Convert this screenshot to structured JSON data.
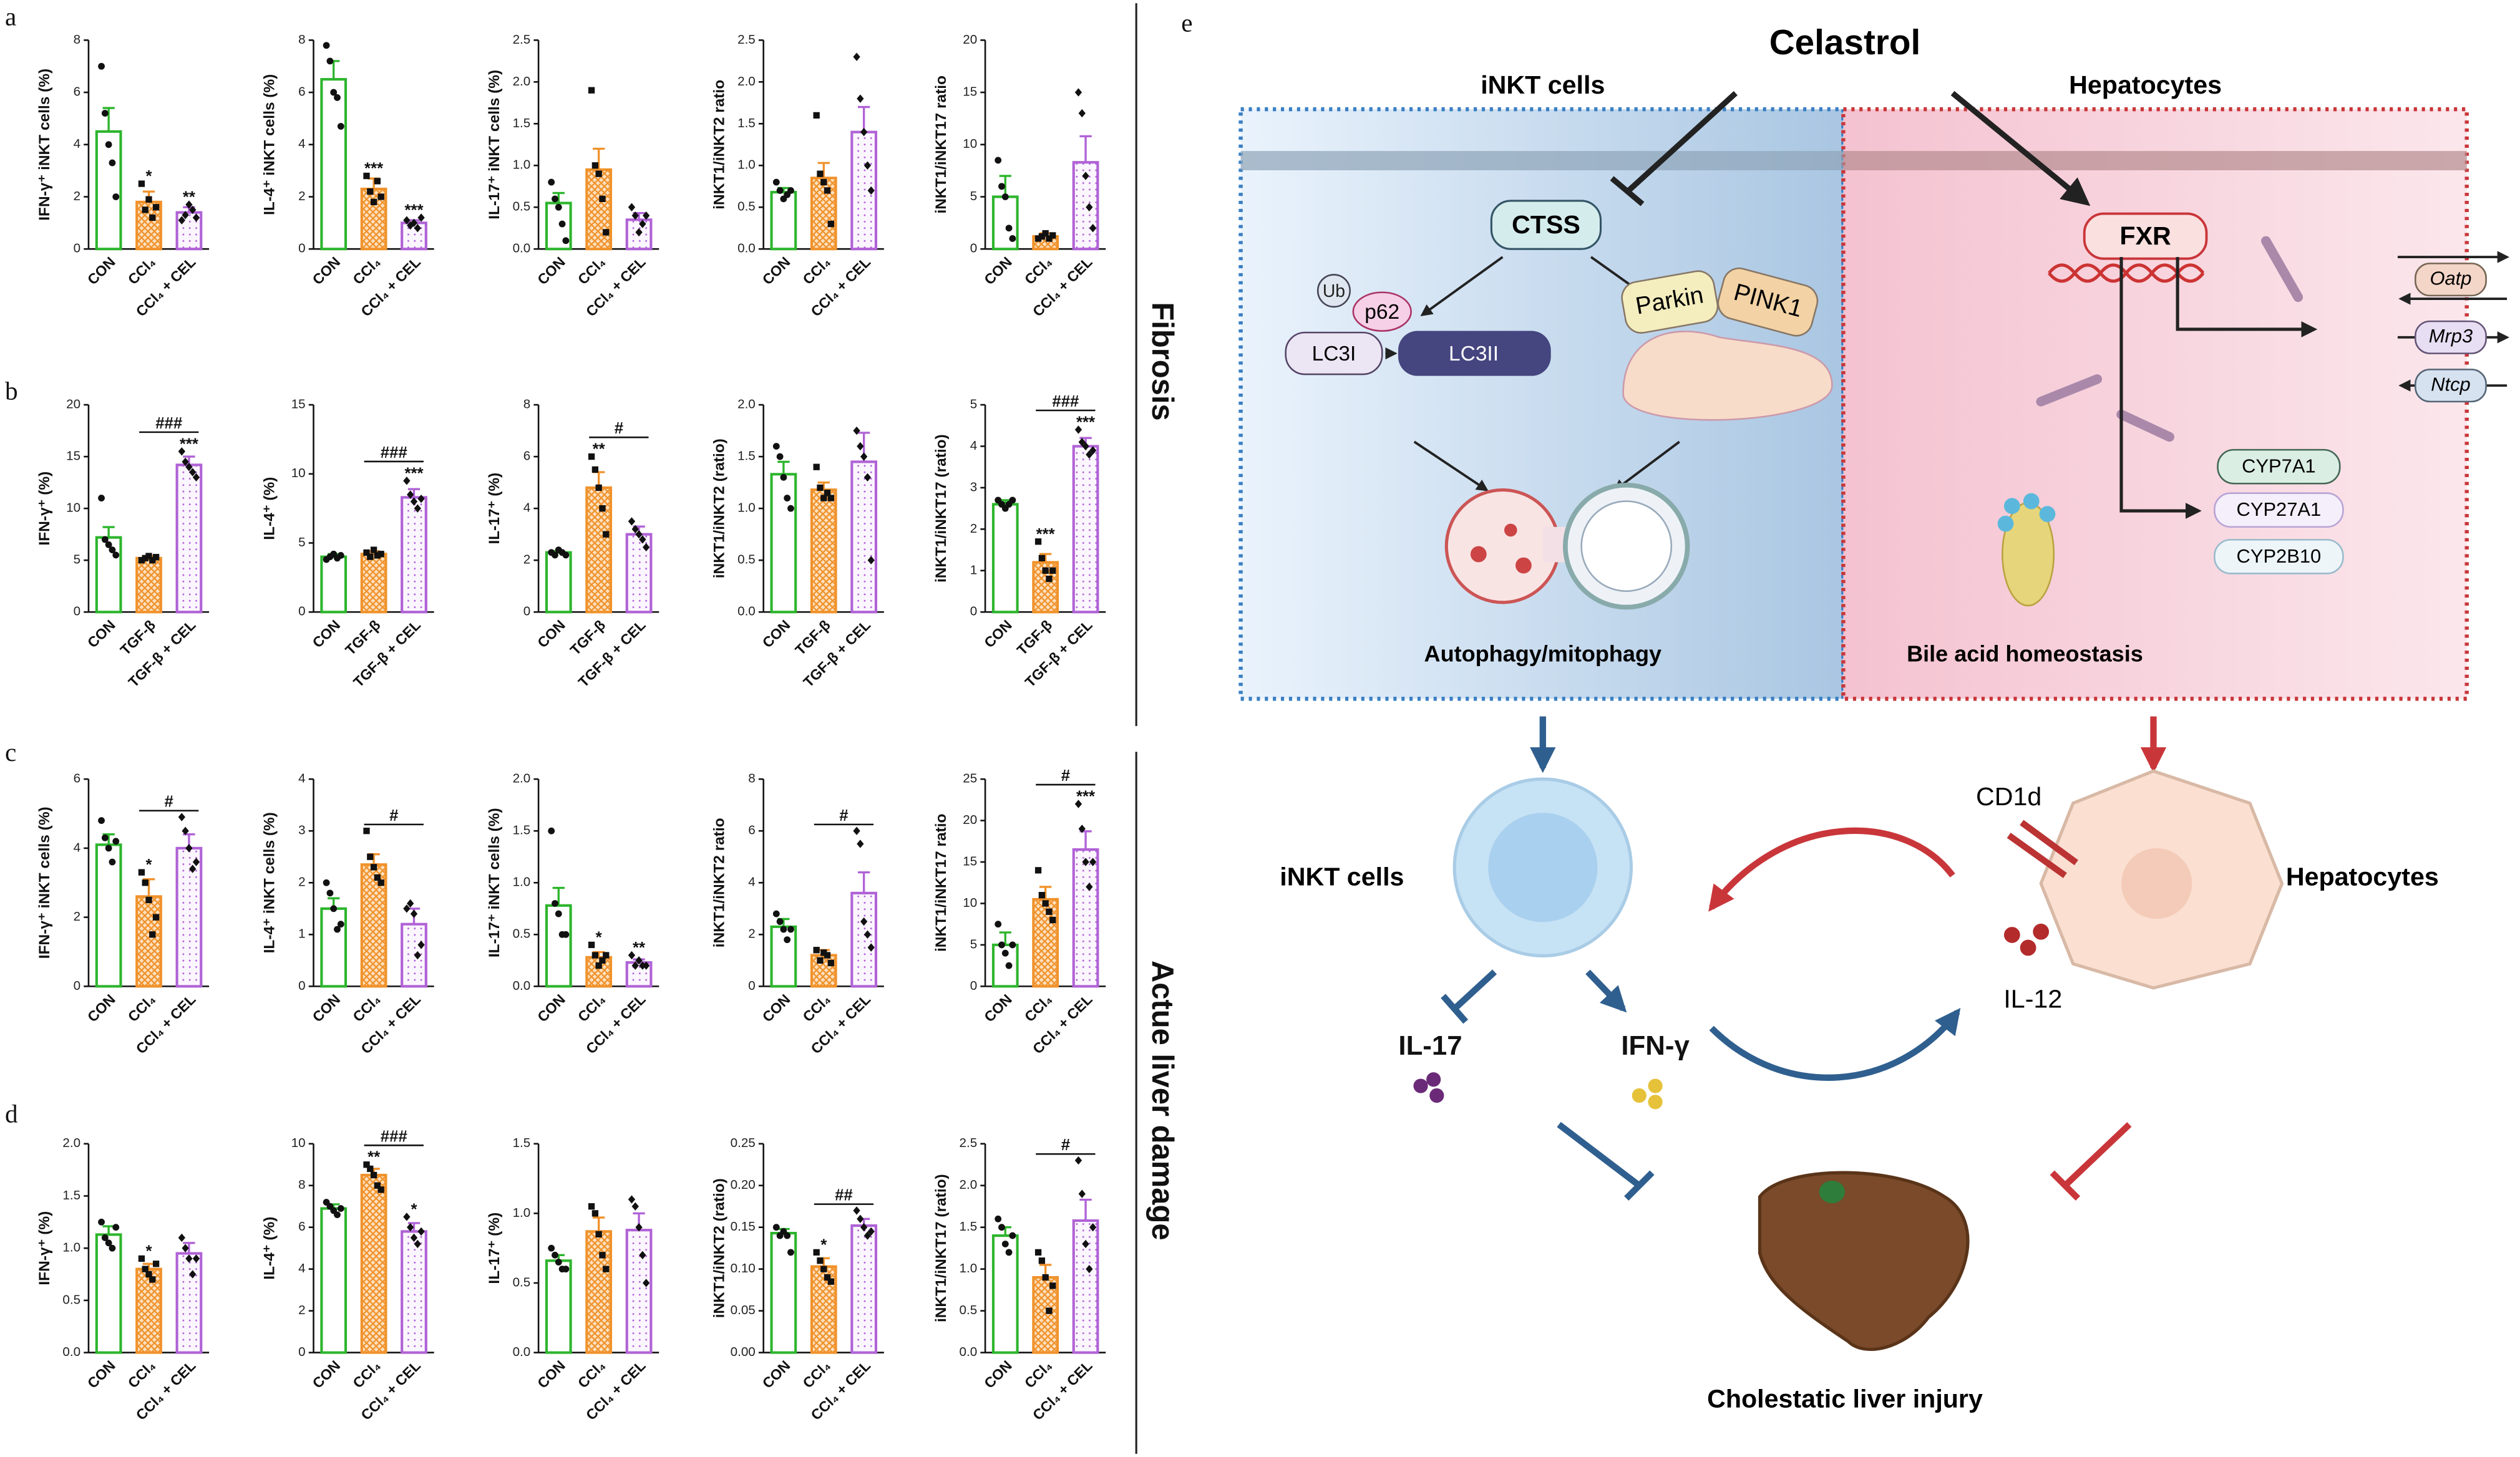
{
  "panels": [
    "a",
    "b",
    "c",
    "d"
  ],
  "side_labels": [
    "Fibrosis",
    "Actue liver damage"
  ],
  "style": {
    "colors": [
      "#2db52d",
      "#f0922b",
      "#b062d6"
    ],
    "patterns": [
      "none",
      "crosshatch",
      "dots"
    ]
  },
  "chart_data": [
    {
      "type": "bar",
      "ylabel": "IFN-γ⁺ iNKT cells (%)",
      "categories": [
        "CON",
        "CCl₄",
        "CCl₄ + CEL"
      ],
      "values": [
        4.5,
        1.8,
        1.4
      ],
      "errors": [
        0.9,
        0.4,
        0.2
      ],
      "points": [
        [
          7,
          5.2,
          4.0,
          3.3,
          2.0
        ],
        [
          2.5,
          1.5,
          1.9,
          1.2,
          1.6
        ],
        [
          1.1,
          1.3,
          1.7,
          1.5,
          1.2
        ]
      ],
      "stars": [
        null,
        "*",
        "**"
      ],
      "ylim": [
        0,
        8
      ],
      "yticks": [
        0,
        2,
        4,
        6,
        8
      ]
    },
    {
      "type": "bar",
      "ylabel": "IL-4⁺ iNKT cells (%)",
      "categories": [
        "CON",
        "CCl₄",
        "CCl₄ + CEL"
      ],
      "values": [
        6.5,
        2.3,
        1.0
      ],
      "errors": [
        0.7,
        0.4,
        0.1
      ],
      "points": [
        [
          7.8,
          7.2,
          6.0,
          5.8,
          4.7
        ],
        [
          2.8,
          2.2,
          1.8,
          2.6,
          2.0
        ],
        [
          1.1,
          0.9,
          1.0,
          0.8,
          1.2
        ]
      ],
      "stars": [
        null,
        "***",
        "***"
      ],
      "ylim": [
        0,
        8
      ],
      "yticks": [
        0,
        2,
        4,
        6,
        8
      ]
    },
    {
      "type": "bar",
      "ylabel": "IL-17⁺ iNKT cells (%)",
      "categories": [
        "CON",
        "CCl₄",
        "CCl₄ + CEL"
      ],
      "values": [
        0.55,
        0.95,
        0.35
      ],
      "errors": [
        0.12,
        0.25,
        0.08
      ],
      "points": [
        [
          0.8,
          0.6,
          0.5,
          0.3,
          0.1
        ],
        [
          1.9,
          1.0,
          0.9,
          0.6,
          0.2
        ],
        [
          0.5,
          0.4,
          0.2,
          0.3,
          0.4
        ]
      ],
      "ylim": [
        0,
        2.5
      ],
      "yticks": [
        {
          "value": 0,
          "label": "0.0"
        },
        0.5,
        {
          "value": 1,
          "label": "1.0"
        },
        1.5,
        {
          "value": 2,
          "label": "2.0"
        },
        2.5
      ]
    },
    {
      "type": "bar",
      "ylabel": "iNKT1/iNKT2 ratio",
      "categories": [
        "CON",
        "CCl₄",
        "CCl₄ + CEL"
      ],
      "values": [
        0.68,
        0.85,
        1.4
      ],
      "errors": [
        0.05,
        0.18,
        0.3
      ],
      "points": [
        [
          0.8,
          0.7,
          0.6,
          0.65,
          0.7
        ],
        [
          1.6,
          0.9,
          0.8,
          0.7,
          0.3
        ],
        [
          2.3,
          1.8,
          1.4,
          1.0,
          0.7
        ]
      ],
      "ylim": [
        0,
        2.5
      ],
      "yticks": [
        {
          "value": 0,
          "label": "0.0"
        },
        0.5,
        {
          "value": 1,
          "label": "1.0"
        },
        1.5,
        {
          "value": 2,
          "label": "2.0"
        },
        2.5
      ]
    },
    {
      "type": "bar",
      "ylabel": "iNKT1/iNKT17 ratio",
      "categories": [
        "CON",
        "CCl₄",
        "CCl₄ + CEL"
      ],
      "values": [
        5,
        1.2,
        8.3
      ],
      "errors": [
        2,
        0.3,
        2.5
      ],
      "points": [
        [
          8.5,
          6,
          5,
          2,
          1
        ],
        [
          1,
          1.2,
          1.5,
          1.0,
          1.3
        ],
        [
          15,
          13,
          7,
          4,
          2
        ]
      ],
      "ylim": [
        0,
        20
      ],
      "yticks": [
        0,
        5,
        10,
        15,
        20
      ]
    },
    {
      "type": "bar",
      "ylabel": "IFN-γ⁺ (%)",
      "categories": [
        "CON",
        "TGF-β",
        "TGF-β + CEL"
      ],
      "values": [
        7.2,
        5.2,
        14.2
      ],
      "errors": [
        1.0,
        0.2,
        0.8
      ],
      "points": [
        [
          11,
          7,
          6.5,
          6,
          5.5
        ],
        [
          5,
          5.2,
          5.4,
          5.0,
          5.3
        ],
        [
          15.5,
          14.5,
          14,
          13.5,
          13
        ]
      ],
      "stars": [
        null,
        null,
        "***"
      ],
      "compare": {
        "from": 1,
        "to": 2,
        "label": "###"
      },
      "ylim": [
        0,
        20
      ],
      "yticks": [
        0,
        5,
        10,
        15,
        20
      ]
    },
    {
      "type": "bar",
      "ylabel": "IL-4⁺ (%)",
      "categories": [
        "CON",
        "TGF-β",
        "TGF-β + CEL"
      ],
      "values": [
        4.0,
        4.2,
        8.3
      ],
      "errors": [
        0.2,
        0.2,
        0.6
      ],
      "points": [
        [
          3.8,
          4.0,
          4.2,
          3.9,
          4.1
        ],
        [
          4.3,
          4.0,
          4.5,
          4.1,
          4.2
        ],
        [
          9.5,
          8.5,
          8.0,
          7.5,
          8.2
        ]
      ],
      "stars": [
        null,
        null,
        "***"
      ],
      "compare": {
        "from": 1,
        "to": 2,
        "label": "###"
      },
      "ylim": [
        0,
        15
      ],
      "yticks": [
        0,
        5,
        10,
        15
      ]
    },
    {
      "type": "bar",
      "ylabel": "IL-17⁺ (%)",
      "categories": [
        "CON",
        "TGF-β",
        "TGF-β + CEL"
      ],
      "values": [
        2.3,
        4.8,
        3.0
      ],
      "errors": [
        0.05,
        0.6,
        0.3
      ],
      "points": [
        [
          2.3,
          2.2,
          2.4,
          2.3,
          2.2
        ],
        [
          6,
          5.5,
          4.8,
          4,
          3
        ],
        [
          3.5,
          3.2,
          3,
          2.8,
          2.5
        ]
      ],
      "stars": [
        null,
        "**",
        null
      ],
      "compare": {
        "from": 1,
        "to": 2,
        "label": "#"
      },
      "ylim": [
        0,
        8
      ],
      "yticks": [
        0,
        2,
        4,
        6,
        8
      ]
    },
    {
      "type": "bar",
      "ylabel": "iNKT1/iNKT2 (ratio)",
      "categories": [
        "CON",
        "TGF-β",
        "TGF-β + CEL"
      ],
      "values": [
        1.33,
        1.18,
        1.45
      ],
      "errors": [
        0.12,
        0.07,
        0.28
      ],
      "points": [
        [
          1.6,
          1.5,
          1.3,
          1.1,
          1.0
        ],
        [
          1.4,
          1.2,
          1.1,
          1.15,
          1.1
        ],
        [
          1.75,
          1.6,
          1.5,
          1.3,
          0.5
        ]
      ],
      "ylim": [
        0,
        2
      ],
      "yticks": [
        {
          "value": 0,
          "label": "0.0"
        },
        0.5,
        {
          "value": 1,
          "label": "1.0"
        },
        1.5,
        {
          "value": 2,
          "label": "2.0"
        }
      ]
    },
    {
      "type": "bar",
      "ylabel": "iNKT1/iNKT17 (ratio)",
      "categories": [
        "CON",
        "TGF-β",
        "TGF-β + CEL"
      ],
      "values": [
        2.6,
        1.2,
        4.0
      ],
      "errors": [
        0.1,
        0.2,
        0.2
      ],
      "points": [
        [
          2.7,
          2.6,
          2.5,
          2.6,
          2.7
        ],
        [
          1.7,
          1.3,
          1.0,
          0.8,
          1.0
        ],
        [
          4.4,
          4.1,
          4.0,
          3.8,
          3.9
        ]
      ],
      "stars": [
        null,
        "***",
        "***"
      ],
      "compare": {
        "from": 1,
        "to": 2,
        "label": "###"
      },
      "ylim": [
        0,
        5
      ],
      "yticks": [
        0,
        1,
        2,
        3,
        4,
        5
      ]
    },
    {
      "type": "bar",
      "ylabel": "IFN-γ⁺ iNKT cells (%)",
      "categories": [
        "CON",
        "CCl₄",
        "CCl₄ + CEL"
      ],
      "values": [
        4.1,
        2.6,
        4.0
      ],
      "errors": [
        0.3,
        0.5,
        0.4
      ],
      "points": [
        [
          4.8,
          4.3,
          4.0,
          3.6,
          4.2
        ],
        [
          3.3,
          3.0,
          2.5,
          1.5,
          2.0
        ],
        [
          4.9,
          4.5,
          4.0,
          3.4,
          3.6
        ]
      ],
      "stars": [
        null,
        "*",
        null
      ],
      "compare": {
        "from": 1,
        "to": 2,
        "label": "#"
      },
      "ylim": [
        0,
        6
      ],
      "yticks": [
        0,
        2,
        4,
        6
      ]
    },
    {
      "type": "bar",
      "ylabel": "IL-4⁺ iNKT cells (%)",
      "categories": [
        "CON",
        "CCl₄",
        "CCl₄ + CEL"
      ],
      "values": [
        1.5,
        2.35,
        1.2
      ],
      "errors": [
        0.2,
        0.2,
        0.3
      ],
      "points": [
        [
          2.0,
          1.8,
          1.5,
          1.1,
          1.2
        ],
        [
          3.0,
          2.5,
          2.3,
          2.1,
          2.0
        ],
        [
          1.5,
          1.6,
          1.4,
          0.6,
          0.8
        ]
      ],
      "compare": {
        "from": 1,
        "to": 2,
        "label": "#"
      },
      "ylim": [
        0,
        4
      ],
      "yticks": [
        0,
        1,
        2,
        3,
        4
      ]
    },
    {
      "type": "bar",
      "ylabel": "IL-17⁺ iNKT cells (%)",
      "categories": [
        "CON",
        "CCl₄",
        "CCl₄ + CEL"
      ],
      "values": [
        0.78,
        0.28,
        0.23
      ],
      "errors": [
        0.17,
        0.05,
        0.03
      ],
      "points": [
        [
          1.5,
          0.8,
          0.7,
          0.5,
          0.5
        ],
        [
          0.4,
          0.3,
          0.2,
          0.25,
          0.3
        ],
        [
          0.3,
          0.2,
          0.25,
          0.2,
          0.2
        ]
      ],
      "stars": [
        null,
        "*",
        "**"
      ],
      "ylim": [
        0,
        2
      ],
      "yticks": [
        {
          "value": 0,
          "label": "0.0"
        },
        0.5,
        {
          "value": 1,
          "label": "1.0"
        },
        1.5,
        {
          "value": 2,
          "label": "2.0"
        }
      ]
    },
    {
      "type": "bar",
      "ylabel": "iNKT1/iNKT2 ratio",
      "categories": [
        "CON",
        "CCl₄",
        "CCl₄ + CEL"
      ],
      "values": [
        2.3,
        1.2,
        3.6
      ],
      "errors": [
        0.3,
        0.2,
        0.8
      ],
      "points": [
        [
          2.8,
          2.5,
          2.2,
          1.8,
          2.2
        ],
        [
          1.4,
          1.0,
          1.3,
          1.2,
          0.9
        ],
        [
          6.0,
          5.5,
          2.5,
          2.0,
          1.5
        ]
      ],
      "compare": {
        "from": 1,
        "to": 2,
        "label": "#"
      },
      "ylim": [
        0,
        8
      ],
      "yticks": [
        0,
        2,
        4,
        6,
        8
      ]
    },
    {
      "type": "bar",
      "ylabel": "iNKT1/iNKT17 ratio",
      "categories": [
        "CON",
        "CCl₄",
        "CCl₄ + CEL"
      ],
      "values": [
        5,
        10.5,
        16.5
      ],
      "errors": [
        1.5,
        1.5,
        2.2
      ],
      "points": [
        [
          7.5,
          5,
          4,
          2.5,
          5
        ],
        [
          14,
          11,
          10,
          9,
          8
        ],
        [
          22,
          19,
          15,
          12,
          15
        ]
      ],
      "stars": [
        null,
        null,
        "***"
      ],
      "compare": {
        "from": 1,
        "to": 2,
        "label": "#"
      },
      "ylim": [
        0,
        25
      ],
      "yticks": [
        0,
        5,
        10,
        15,
        20,
        25
      ]
    },
    {
      "type": "bar",
      "ylabel": "IFN-γ⁺ (%)",
      "categories": [
        "CON",
        "CCl₄",
        "CCl₄ + CEL"
      ],
      "values": [
        1.13,
        0.8,
        0.95
      ],
      "errors": [
        0.08,
        0.05,
        0.1
      ],
      "points": [
        [
          1.25,
          1.1,
          1.05,
          1.0,
          1.2
        ],
        [
          0.9,
          0.8,
          0.75,
          0.7,
          0.85
        ],
        [
          1.1,
          1.0,
          0.9,
          0.75,
          0.9
        ]
      ],
      "stars": [
        null,
        "*",
        null
      ],
      "ylim": [
        0,
        2
      ],
      "yticks": [
        {
          "value": 0,
          "label": "0.0"
        },
        0.5,
        {
          "value": 1,
          "label": "1.0"
        },
        1.5,
        {
          "value": 2,
          "label": "2.0"
        }
      ]
    },
    {
      "type": "bar",
      "ylabel": "IL-4⁺ (%)",
      "categories": [
        "CON",
        "CCl₄",
        "CCl₄ + CEL"
      ],
      "values": [
        6.9,
        8.5,
        5.8
      ],
      "errors": [
        0.2,
        0.3,
        0.4
      ],
      "points": [
        [
          7.2,
          7.0,
          6.8,
          6.6,
          6.9
        ],
        [
          9.0,
          8.8,
          8.5,
          8.0,
          7.8
        ],
        [
          6.5,
          6.0,
          5.5,
          5.2,
          5.8
        ]
      ],
      "stars": [
        null,
        "**",
        "*"
      ],
      "compare": {
        "from": 1,
        "to": 2,
        "label": "###"
      },
      "ylim": [
        0,
        10
      ],
      "yticks": [
        0,
        2,
        4,
        6,
        8,
        10
      ]
    },
    {
      "type": "bar",
      "ylabel": "IL-17⁺ (%)",
      "categories": [
        "CON",
        "CCl₄",
        "CCl₄ + CEL"
      ],
      "values": [
        0.66,
        0.87,
        0.88
      ],
      "errors": [
        0.04,
        0.1,
        0.12
      ],
      "points": [
        [
          0.75,
          0.7,
          0.65,
          0.6,
          0.6
        ],
        [
          1.05,
          1.0,
          0.85,
          0.7,
          0.6
        ],
        [
          1.1,
          1.05,
          0.9,
          0.7,
          0.5
        ]
      ],
      "ylim": [
        0,
        1.5
      ],
      "yticks": [
        {
          "value": 0,
          "label": "0.0"
        },
        0.5,
        {
          "value": 1,
          "label": "1.0"
        },
        1.5
      ]
    },
    {
      "type": "bar",
      "ylabel": "iNKT1/iNKT2 (ratio)",
      "categories": [
        "CON",
        "CCl₄",
        "CCl₄ + CEL"
      ],
      "values": [
        0.143,
        0.103,
        0.152
      ],
      "errors": [
        0.005,
        0.01,
        0.008
      ],
      "points": [
        [
          0.15,
          0.14,
          0.145,
          0.14,
          0.12
        ],
        [
          0.12,
          0.11,
          0.1,
          0.09,
          0.085
        ],
        [
          0.17,
          0.16,
          0.15,
          0.14,
          0.145
        ]
      ],
      "stars": [
        null,
        "*",
        null
      ],
      "compare": {
        "from": 1,
        "to": 2,
        "label": "##"
      },
      "ylim": [
        0,
        0.25
      ],
      "yticks": [
        {
          "value": 0,
          "label": "0.00"
        },
        0.05,
        {
          "value": 0.1,
          "label": "0.10"
        },
        0.15,
        {
          "value": 0.2,
          "label": "0.20"
        },
        0.25
      ]
    },
    {
      "type": "bar",
      "ylabel": "iNKT1/iNKT17 (ratio)",
      "categories": [
        "CON",
        "CCl₄",
        "CCl₄ + CEL"
      ],
      "values": [
        1.4,
        0.9,
        1.58
      ],
      "errors": [
        0.1,
        0.15,
        0.25
      ],
      "points": [
        [
          1.6,
          1.5,
          1.3,
          1.2,
          1.4
        ],
        [
          1.2,
          1.1,
          0.9,
          0.5,
          0.8
        ],
        [
          2.3,
          1.9,
          1.3,
          1.0,
          1.5
        ]
      ],
      "compare": {
        "from": 1,
        "to": 2,
        "label": "#"
      },
      "ylim": [
        0,
        2.5
      ],
      "yticks": [
        {
          "value": 0,
          "label": "0.0"
        },
        0.5,
        {
          "value": 1,
          "label": "1.0"
        },
        1.5,
        {
          "value": 2,
          "label": "2.0"
        },
        2.5
      ]
    }
  ],
  "diagram": {
    "panel": "e",
    "top": "Celastrol",
    "left_title": "iNKT cells",
    "right_title": "Hepatocytes",
    "ctss": "CTSS",
    "ub": "Ub",
    "p62": "p62",
    "lc3i": "LC3I",
    "lc3ii": "LC3II",
    "parkin": "Parkin",
    "pink1": "PINK1",
    "autophagy": "Autophagy/mitophagy",
    "fxr": "FXR",
    "transporters": [
      "Oatp",
      "Mrp3",
      "Ntcp"
    ],
    "cyps": [
      "CYP7A1",
      "CYP27A1",
      "CYP2B10"
    ],
    "bile": "Bile acid homeostasis",
    "cd1d": "CD1d",
    "cell_inkt": "iNKT cells",
    "cell_hep": "Hepatocytes",
    "il17": "IL-17",
    "ifng": "IFN-γ",
    "il12": "IL-12",
    "injury": "Cholestatic liver injury"
  }
}
